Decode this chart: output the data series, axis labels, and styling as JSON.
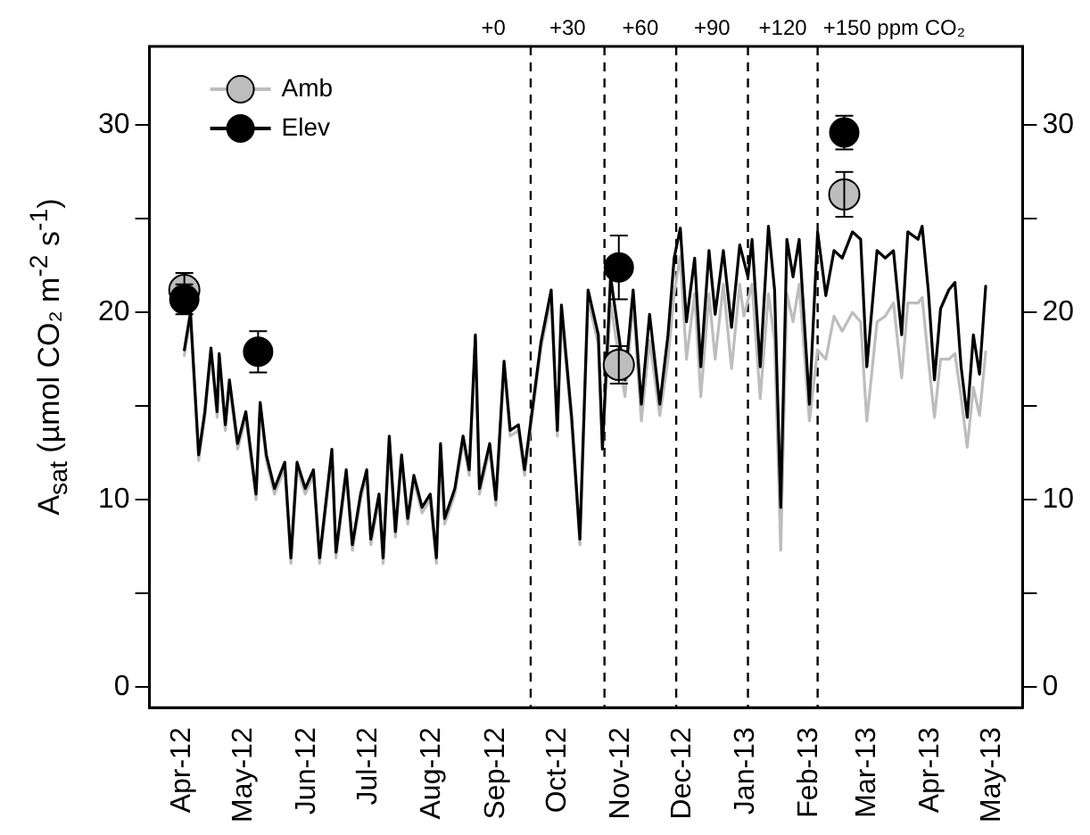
{
  "chart_data": {
    "type": "line",
    "ylabel": "A$_{sat}$ (µmol CO₂ m$^{-2}$ s$^{-1}$)",
    "xlim": [
      "2012-03-16",
      "2013-05-16"
    ],
    "xticks": [
      {
        "value": "2012-04-01",
        "label": "Apr-12"
      },
      {
        "value": "2012-05-01",
        "label": "May-12"
      },
      {
        "value": "2012-06-01",
        "label": "Jun-12"
      },
      {
        "value": "2012-07-01",
        "label": "Jul-12"
      },
      {
        "value": "2012-08-01",
        "label": "Aug-12"
      },
      {
        "value": "2012-09-01",
        "label": "Sep-12"
      },
      {
        "value": "2012-10-01",
        "label": "Oct-12"
      },
      {
        "value": "2012-11-01",
        "label": "Nov-12"
      },
      {
        "value": "2012-12-01",
        "label": "Dec-12"
      },
      {
        "value": "2013-01-01",
        "label": "Jan-13"
      },
      {
        "value": "2013-02-01",
        "label": "Feb-13"
      },
      {
        "value": "2013-03-01",
        "label": "Mar-13"
      },
      {
        "value": "2013-04-01",
        "label": "Apr-13"
      },
      {
        "value": "2013-05-01",
        "label": "May-13"
      }
    ],
    "ylim": [
      -1.1,
      34.2
    ],
    "yticks": [
      0,
      {
        "value": 5,
        "label": null
      },
      10,
      {
        "value": 15,
        "label": null
      },
      20,
      {
        "value": 25,
        "label": null
      },
      30
    ],
    "y2lim": [
      -1.1,
      34.2
    ],
    "y2ticks": [
      0,
      {
        "value": 5,
        "label": null
      },
      10,
      {
        "value": 15,
        "label": null
      },
      20,
      {
        "value": 25,
        "label": null
      },
      30
    ],
    "grid": false,
    "legend": "top left",
    "ref_lines": [
      {
        "axis": "x",
        "value": "2012-09-18",
        "line_style": "dashed",
        "color": "#000000"
      },
      {
        "axis": "x",
        "value": "2012-10-24",
        "line_style": "dashed",
        "color": "#000000"
      },
      {
        "axis": "x",
        "value": "2012-11-28",
        "line_style": "dashed",
        "color": "#000000"
      },
      {
        "axis": "x",
        "value": "2013-01-02",
        "line_style": "dashed",
        "color": "#000000"
      },
      {
        "axis": "x",
        "value": "2013-02-05",
        "line_style": "dashed",
        "color": "#000000"
      }
    ],
    "annotations": [
      "+0",
      "+30",
      "+60",
      "+90",
      "+120",
      "+150 ppm CO₂"
    ],
    "series": [
      {
        "name": "Amb",
        "color": "#bdbdbd",
        "x": [
          "2012-04-02",
          "2012-04-05",
          "2012-04-09",
          "2012-04-12",
          "2012-04-15",
          "2012-04-18",
          "2012-04-19",
          "2012-04-22",
          "2012-04-24",
          "2012-04-28",
          "2012-05-02",
          "2012-05-07",
          "2012-05-09",
          "2012-05-12",
          "2012-05-16",
          "2012-05-21",
          "2012-05-24",
          "2012-05-27",
          "2012-05-31",
          "2012-06-04",
          "2012-06-07",
          "2012-06-13",
          "2012-06-15",
          "2012-06-20",
          "2012-06-23",
          "2012-06-27",
          "2012-06-30",
          "2012-07-02",
          "2012-07-06",
          "2012-07-08",
          "2012-07-11",
          "2012-07-14",
          "2012-07-17",
          "2012-07-20",
          "2012-07-23",
          "2012-07-27",
          "2012-07-31",
          "2012-08-03",
          "2012-08-05",
          "2012-08-07",
          "2012-08-12",
          "2012-08-16",
          "2012-08-19",
          "2012-08-22",
          "2012-08-24",
          "2012-08-29",
          "2012-09-01",
          "2012-09-05",
          "2012-09-08",
          "2012-09-12",
          "2012-09-15",
          "2012-09-19",
          "2012-09-23",
          "2012-09-28",
          "2012-10-01",
          "2012-10-03",
          "2012-10-08",
          "2012-10-12",
          "2012-10-16",
          "2012-10-21",
          "2012-10-23",
          "2012-10-27",
          "2012-11-03",
          "2012-11-07",
          "2012-11-11",
          "2012-11-15",
          "2012-11-20",
          "2012-11-24",
          "2012-11-27",
          "2012-11-30",
          "2012-12-03",
          "2012-12-07",
          "2012-12-10",
          "2012-12-14",
          "2012-12-17",
          "2012-12-21",
          "2012-12-25",
          "2012-12-29",
          "2012-12-31",
          "2013-01-04",
          "2013-01-08",
          "2013-01-12",
          "2013-01-15",
          "2013-01-18",
          "2013-01-21",
          "2013-01-24",
          "2013-01-27",
          "2013-02-01",
          "2013-02-05",
          "2013-02-09",
          "2013-02-13",
          "2013-02-17",
          "2013-02-22",
          "2013-02-26",
          "2013-03-01",
          "2013-03-06",
          "2013-03-10",
          "2013-03-14",
          "2013-03-18",
          "2013-03-21",
          "2013-03-26",
          "2013-03-28",
          "2013-03-31",
          "2013-04-03",
          "2013-04-06",
          "2013-04-10",
          "2013-04-13",
          "2013-04-16",
          "2013-04-19",
          "2013-04-22",
          "2013-04-25",
          "2013-04-28"
        ],
        "values": [
          17.7,
          19.7,
          12.1,
          14.4,
          17.8,
          14.4,
          17.5,
          13.7,
          16.1,
          12.7,
          14.4,
          10,
          14.9,
          12.1,
          10.3,
          11.7,
          6.6,
          11.7,
          10.3,
          11.3,
          6.6,
          12.4,
          6.9,
          11.3,
          7.3,
          10,
          11.3,
          7.6,
          10,
          6.6,
          13.1,
          8,
          12.1,
          8.7,
          11,
          9.3,
          10,
          6.6,
          12.7,
          8.7,
          10.3,
          13.1,
          11.3,
          18.5,
          10.3,
          12.7,
          9.7,
          17.1,
          13.4,
          13.7,
          11.3,
          14.7,
          18.1,
          20.7,
          13.4,
          19.9,
          14,
          7.6,
          20.7,
          18.3,
          12.7,
          20.5,
          15.5,
          20.5,
          14.2,
          18.5,
          14.5,
          17.5,
          21,
          23,
          17.5,
          21,
          15.5,
          21,
          17.5,
          21.5,
          17,
          21.5,
          19.8,
          21.5,
          15.4,
          21,
          18.5,
          7.3,
          21,
          19.5,
          21.5,
          14.2,
          18,
          17.5,
          19.8,
          19,
          20,
          19.5,
          14.2,
          19.5,
          19.8,
          20.5,
          16.5,
          20.5,
          20.5,
          20.8,
          17.5,
          14.4,
          17.5,
          17.5,
          17.8,
          15.5,
          12.8,
          16,
          14.5,
          17.9
        ]
      },
      {
        "name": "Elev",
        "color": "#000000",
        "x": [
          "2012-04-02",
          "2012-04-05",
          "2012-04-09",
          "2012-04-12",
          "2012-04-15",
          "2012-04-18",
          "2012-04-19",
          "2012-04-22",
          "2012-04-24",
          "2012-04-28",
          "2012-05-02",
          "2012-05-07",
          "2012-05-09",
          "2012-05-12",
          "2012-05-16",
          "2012-05-21",
          "2012-05-24",
          "2012-05-27",
          "2012-05-31",
          "2012-06-04",
          "2012-06-07",
          "2012-06-13",
          "2012-06-15",
          "2012-06-20",
          "2012-06-23",
          "2012-06-27",
          "2012-06-30",
          "2012-07-02",
          "2012-07-06",
          "2012-07-08",
          "2012-07-11",
          "2012-07-14",
          "2012-07-17",
          "2012-07-20",
          "2012-07-23",
          "2012-07-27",
          "2012-07-31",
          "2012-08-03",
          "2012-08-05",
          "2012-08-07",
          "2012-08-12",
          "2012-08-16",
          "2012-08-19",
          "2012-08-22",
          "2012-08-24",
          "2012-08-29",
          "2012-09-01",
          "2012-09-05",
          "2012-09-08",
          "2012-09-12",
          "2012-09-15",
          "2012-09-19",
          "2012-09-23",
          "2012-09-28",
          "2012-10-01",
          "2012-10-03",
          "2012-10-08",
          "2012-10-12",
          "2012-10-16",
          "2012-10-21",
          "2012-10-23",
          "2012-10-27",
          "2012-11-03",
          "2012-11-07",
          "2012-11-11",
          "2012-11-15",
          "2012-11-20",
          "2012-11-24",
          "2012-11-27",
          "2012-11-30",
          "2012-12-03",
          "2012-12-07",
          "2012-12-10",
          "2012-12-14",
          "2012-12-17",
          "2012-12-21",
          "2012-12-25",
          "2012-12-29",
          "2013-01-02",
          "2013-01-04",
          "2013-01-08",
          "2013-01-12",
          "2013-01-15",
          "2013-01-18",
          "2013-01-21",
          "2013-01-24",
          "2013-01-27",
          "2013-02-01",
          "2013-02-05",
          "2013-02-09",
          "2013-02-13",
          "2013-02-17",
          "2013-02-22",
          "2013-02-26",
          "2013-03-01",
          "2013-03-06",
          "2013-03-10",
          "2013-03-14",
          "2013-03-18",
          "2013-03-21",
          "2013-03-26",
          "2013-03-28",
          "2013-03-31",
          "2013-04-03",
          "2013-04-06",
          "2013-04-10",
          "2013-04-13",
          "2013-04-16",
          "2013-04-19",
          "2013-04-22",
          "2013-04-25",
          "2013-04-28"
        ],
        "values": [
          18,
          20,
          12.4,
          14.7,
          18.1,
          14.7,
          17.8,
          14,
          16.4,
          13,
          14.7,
          10.3,
          15.2,
          12.4,
          10.6,
          12,
          6.9,
          12,
          10.6,
          11.6,
          6.9,
          12.7,
          7.2,
          11.6,
          7.6,
          10.3,
          11.6,
          7.9,
          10.3,
          6.9,
          13.4,
          8.3,
          12.4,
          9,
          11.3,
          9.6,
          10.3,
          6.9,
          13,
          9,
          10.6,
          13.4,
          11.6,
          18.8,
          10.6,
          13,
          10,
          17.4,
          13.7,
          14,
          11.6,
          15,
          18.4,
          21.2,
          13.7,
          20.4,
          14.4,
          7.9,
          21.2,
          18.8,
          12.7,
          21.9,
          16.4,
          21.2,
          15.1,
          19.9,
          15.1,
          18.8,
          22.9,
          24.5,
          19.5,
          22.9,
          17.1,
          23.3,
          19.9,
          23.3,
          19.2,
          23.6,
          21.9,
          23.9,
          17.1,
          24.6,
          21.2,
          9.6,
          23.9,
          21.9,
          23.9,
          15.1,
          24.3,
          20.9,
          23.3,
          22.9,
          24.3,
          23.9,
          17.1,
          23.3,
          22.9,
          23.3,
          18.8,
          24.3,
          23.9,
          24.6,
          21.2,
          16.4,
          20.2,
          21.2,
          21.6,
          17.1,
          14.4,
          18.8,
          16.7,
          21.4
        ]
      },
      {
        "type": "scatter",
        "marker": "circle",
        "color": "#bdbdbd",
        "x": [
          "2012-04-02",
          "2012-05-08",
          "2012-10-31",
          "2013-02-18"
        ],
        "values": [
          21.2,
          null,
          17.2,
          26.3
        ],
        "errors": [
          0.9,
          null,
          1,
          1.2
        ]
      },
      {
        "type": "scatter",
        "marker": "circle",
        "color": "#000000",
        "x": [
          "2012-04-02",
          "2012-05-08",
          "2012-10-31",
          "2013-02-18"
        ],
        "values": [
          20.7,
          17.9,
          22.4,
          29.6
        ],
        "errors": [
          0.8,
          1.1,
          1.7,
          0.9
        ]
      }
    ]
  }
}
